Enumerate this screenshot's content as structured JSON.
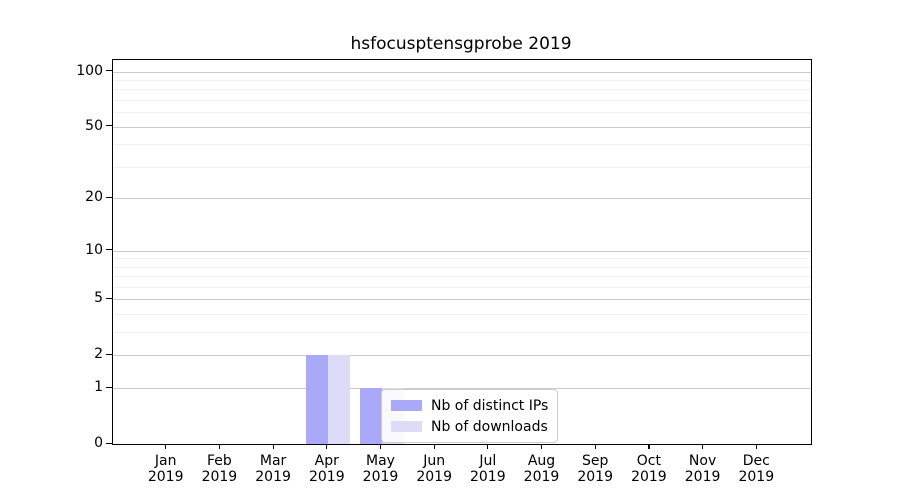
{
  "chart_data": {
    "type": "bar",
    "title": "hsfocusptensgprobe 2019",
    "categories": [
      "Jan",
      "Feb",
      "Mar",
      "Apr",
      "May",
      "Jun",
      "Jul",
      "Aug",
      "Sep",
      "Oct",
      "Nov",
      "Dec"
    ],
    "xtick_year": "2019",
    "series": [
      {
        "name": "Nb of distinct IPs",
        "color": "#a9a9f8",
        "values": [
          0,
          0,
          0,
          2,
          1,
          0,
          0,
          0,
          0,
          0,
          0,
          0
        ]
      },
      {
        "name": "Nb of downloads",
        "color": "#dcdcf8",
        "values": [
          0,
          0,
          0,
          2,
          1,
          0,
          0,
          0,
          0,
          0,
          0,
          0
        ]
      }
    ],
    "yscale": "log1p",
    "ylim": [
      0,
      116
    ],
    "yticks": [
      0,
      1,
      2,
      5,
      10,
      20,
      50,
      100
    ],
    "yticks_minor": [
      3,
      4,
      6,
      7,
      8,
      9,
      30,
      40,
      60,
      70,
      80,
      90
    ],
    "grid": true,
    "legend_position": "lower-center",
    "colors": {
      "major_grid": "#cccccc",
      "minor_grid": "#f0f0f0",
      "spine": "#000000",
      "legend_border": "#cccccc"
    }
  }
}
